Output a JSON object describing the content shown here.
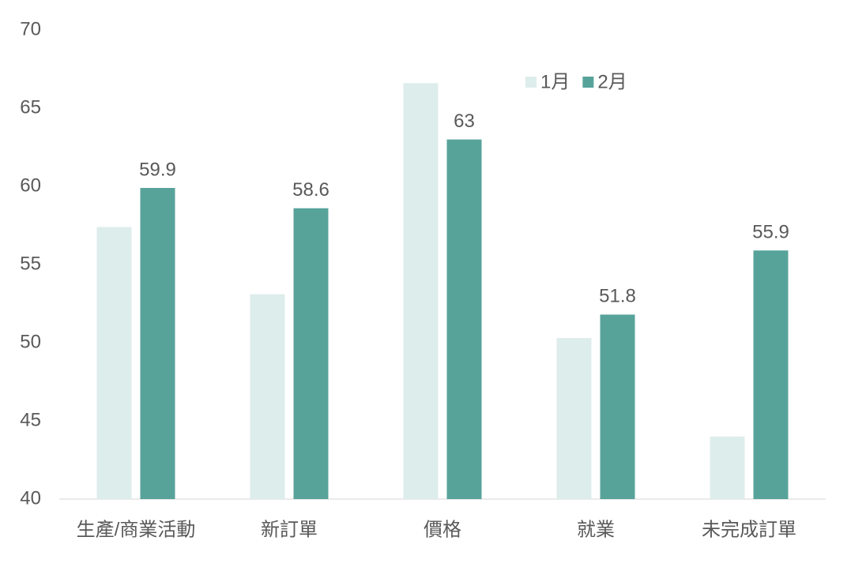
{
  "chart_data": {
    "type": "bar",
    "categories": [
      "生產/商業活動",
      "新訂單",
      "價格",
      "就業",
      "未完成訂單"
    ],
    "series": [
      {
        "name": "1月",
        "color": "#ddedeb",
        "values": [
          57.4,
          53.1,
          66.6,
          50.3,
          44.0
        ]
      },
      {
        "name": "2月",
        "color": "#57a39a",
        "values": [
          59.9,
          58.6,
          63,
          51.8,
          55.9
        ]
      }
    ],
    "data_labels_series": "2月",
    "ylim": [
      40,
      70
    ],
    "yticks": [
      40,
      45,
      50,
      55,
      60,
      65,
      70
    ],
    "grid": false,
    "legend": "top-right"
  }
}
